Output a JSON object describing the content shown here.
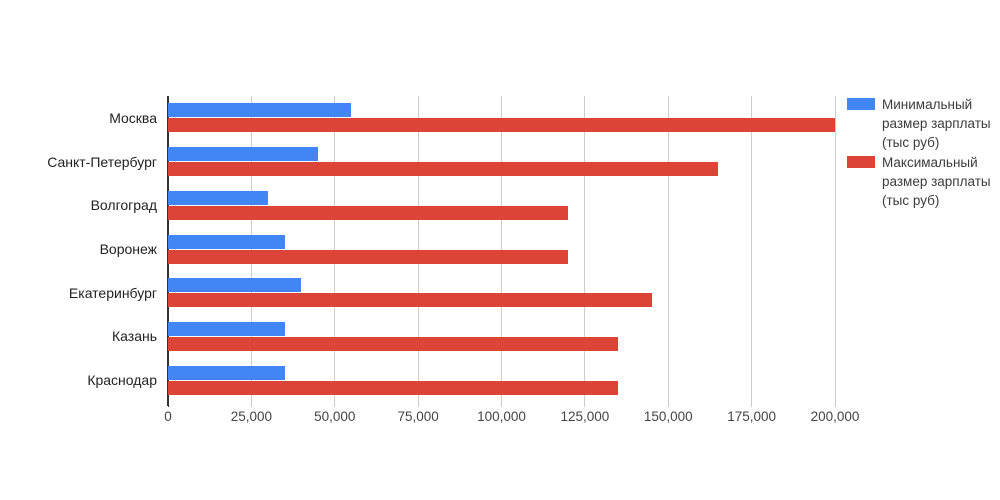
{
  "chart_data": {
    "type": "bar",
    "orientation": "horizontal",
    "title": "",
    "xlabel": "",
    "ylabel": "",
    "grid": true,
    "legend_position": "right",
    "categories": [
      "Москва",
      "Санкт-Петербург",
      "Волгоград",
      "Воронеж",
      "Екатеринбург",
      "Казань",
      "Краснодар"
    ],
    "series": [
      {
        "name": "Минимальный размер зарплаты (тыс руб)",
        "color": "#4285F4",
        "values": [
          55000,
          45000,
          30000,
          35000,
          40000,
          35000,
          35000
        ]
      },
      {
        "name": "Максимальный размер зарплаты (тыс руб)",
        "color": "#DB4437",
        "values": [
          200000,
          165000,
          120000,
          120000,
          145000,
          135000,
          135000
        ]
      }
    ],
    "xlim": [
      0,
      200000
    ],
    "x_tick_labels": [
      "0",
      "25,000",
      "50,000",
      "75,000",
      "100,000",
      "125,000",
      "150,000",
      "175,000",
      "200,000"
    ]
  },
  "colors": {
    "background": "#ffffff",
    "grid": "#cccccc",
    "axis": "#333333",
    "category_label": "#222222",
    "tick_label": "#444444",
    "legend_label": "#3c3c3c"
  }
}
